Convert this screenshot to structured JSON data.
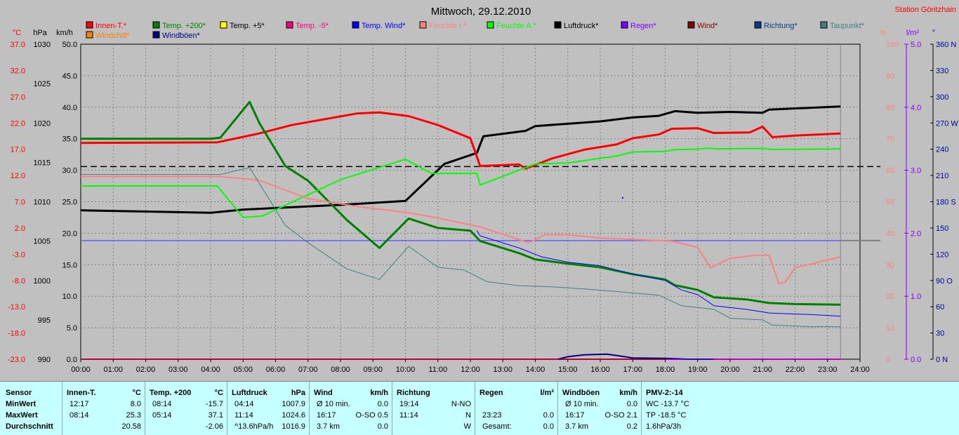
{
  "chart_data": {
    "type": "line",
    "title": "Mittwoch, 29.12.2010",
    "station": "Station Göritzhain",
    "axes": {
      "celsius": {
        "unit": "°C",
        "ticks": [
          "37.0",
          "32.0",
          "27.0",
          "22.0",
          "17.0",
          "12.0",
          "7.0",
          "2.0",
          "-3.0",
          "-8.0",
          "-13.0",
          "-18.0",
          "-23.0"
        ],
        "range": [
          -23,
          37
        ],
        "color": "#ff0000"
      },
      "hpa": {
        "unit": "hPa",
        "ticks": [
          "1030",
          "1025",
          "1020",
          "1015",
          "1010",
          "1005",
          "1000",
          "995",
          "990"
        ],
        "range": [
          990,
          1030
        ]
      },
      "kmh": {
        "unit": "km/h",
        "ticks": [
          "50.0",
          "45.0",
          "40.0",
          "35.0",
          "30.0",
          "25.0",
          "20.0",
          "15.0",
          "10.0",
          "5.0",
          "0.0"
        ],
        "range": [
          0,
          50
        ]
      },
      "percent": {
        "unit": "%",
        "ticks": [
          "100",
          "90",
          "80",
          "70",
          "60",
          "50",
          "40",
          "30",
          "20",
          "10",
          "0"
        ],
        "range": [
          0,
          100
        ],
        "color": "#ff8080"
      },
      "lm2": {
        "unit": "l/m²",
        "ticks": [
          "5.0",
          "4.0",
          "3.0",
          "2.0",
          "1.0",
          "0.0"
        ],
        "range": [
          0,
          5
        ],
        "color": "#8000ff"
      },
      "degree": {
        "unit": "°",
        "ticks": [
          "360 N",
          "330",
          "300",
          "270 W",
          "240",
          "210",
          "180 S",
          "150",
          "120",
          "90 O",
          "60",
          "30",
          "0 N"
        ],
        "range": [
          0,
          360
        ],
        "color": "#0000a0"
      },
      "time": {
        "ticks": [
          "00:00",
          "01:00",
          "02:00",
          "03:00",
          "04:00",
          "05:00",
          "06:00",
          "07:00",
          "08:00",
          "09:00",
          "10:00",
          "11:00",
          "12:00",
          "13:00",
          "14:00",
          "15:00",
          "16:00",
          "17:00",
          "18:00",
          "19:00",
          "20:00",
          "21:00",
          "22:00",
          "23:00",
          "24:00"
        ],
        "range": [
          0,
          24
        ]
      }
    },
    "legend": [
      {
        "name": "Innen-T.*",
        "color": "#ff0000"
      },
      {
        "name": "Temp. +200*",
        "color": "#008000"
      },
      {
        "name": "Temp. +5*",
        "color": "#ffff00"
      },
      {
        "name": "Temp. -5*",
        "color": "#ff0080"
      },
      {
        "name": "Temp. Wind*",
        "color": "#0000ff"
      },
      {
        "name": "Feuchte I.*",
        "color": "#ff8080"
      },
      {
        "name": "Feuchte A.*",
        "color": "#00ff00"
      },
      {
        "name": "Luftdruck*",
        "color": "#000000"
      },
      {
        "name": "Regen*",
        "color": "#8000ff"
      },
      {
        "name": "Wind*",
        "color": "#800000"
      },
      {
        "name": "Richtung*",
        "color": "#004080"
      },
      {
        "name": "Taupunkt*",
        "color": "#408080"
      },
      {
        "name": "Windchill*",
        "color": "#ff8000"
      },
      {
        "name": "Windböen*",
        "color": "#000080"
      }
    ],
    "series": [
      {
        "name": "Luftdruck*",
        "axis": "hpa",
        "color": "#000000",
        "width": 3,
        "points": [
          [
            0,
            1008.9
          ],
          [
            4,
            1008.6
          ],
          [
            5,
            1009.0
          ],
          [
            8,
            1009.6
          ],
          [
            10,
            1010.1
          ],
          [
            11.2,
            1014.8
          ],
          [
            12.2,
            1016.2
          ],
          [
            12.4,
            1018.3
          ],
          [
            13.7,
            1019.0
          ],
          [
            14,
            1019.6
          ],
          [
            16,
            1020.2
          ],
          [
            17,
            1020.7
          ],
          [
            17.8,
            1020.9
          ],
          [
            18.3,
            1021.5
          ],
          [
            19,
            1021.3
          ],
          [
            20,
            1021.4
          ],
          [
            21,
            1021.3
          ],
          [
            21.2,
            1021.7
          ],
          [
            23.4,
            1022.1
          ]
        ]
      },
      {
        "name": "Innen-T.*",
        "axis": "celsius",
        "color": "#ff0000",
        "width": 3,
        "points": [
          [
            0,
            18.2
          ],
          [
            4.2,
            18.3
          ],
          [
            5.5,
            20.0
          ],
          [
            6.5,
            21.6
          ],
          [
            7.5,
            22.7
          ],
          [
            8.5,
            23.8
          ],
          [
            9.2,
            24.0
          ],
          [
            10.1,
            23.3
          ],
          [
            11,
            21.6
          ],
          [
            12,
            19.1
          ],
          [
            12.3,
            13.8
          ],
          [
            13.5,
            14.1
          ],
          [
            13.7,
            13.3
          ],
          [
            14.5,
            15.2
          ],
          [
            15.5,
            16.9
          ],
          [
            16.5,
            17.9
          ],
          [
            17,
            19.1
          ],
          [
            17.8,
            19.8
          ],
          [
            18.2,
            20.9
          ],
          [
            19,
            21.0
          ],
          [
            19.5,
            20.1
          ],
          [
            20.6,
            20.2
          ],
          [
            21,
            21.3
          ],
          [
            21.3,
            19.3
          ],
          [
            22,
            19.6
          ],
          [
            23.4,
            20.0
          ]
        ]
      },
      {
        "name": "Temp. +200*",
        "axis": "celsius",
        "color": "#008000",
        "width": 3,
        "points": [
          [
            0,
            19.0
          ],
          [
            4,
            19.0
          ],
          [
            4.3,
            19.2
          ],
          [
            5.2,
            26.0
          ],
          [
            5.5,
            22.0
          ],
          [
            6.3,
            13.8
          ],
          [
            7,
            11.0
          ],
          [
            8.2,
            3.5
          ],
          [
            9.2,
            -1.8
          ],
          [
            10.1,
            3.8
          ],
          [
            11,
            2.0
          ],
          [
            12,
            1.5
          ],
          [
            12.3,
            -0.5
          ],
          [
            13.5,
            -2.8
          ],
          [
            14,
            -4.0
          ],
          [
            15,
            -4.8
          ],
          [
            16,
            -5.5
          ],
          [
            17,
            -6.8
          ],
          [
            18,
            -7.8
          ],
          [
            18.3,
            -8.9
          ],
          [
            19,
            -9.8
          ],
          [
            19.5,
            -11.2
          ],
          [
            20.5,
            -11.6
          ],
          [
            21.2,
            -12.3
          ],
          [
            22,
            -12.5
          ],
          [
            23.4,
            -12.6
          ]
        ]
      },
      {
        "name": "Feuchte A.*",
        "axis": "percent",
        "color": "#00ff00",
        "width": 2,
        "points": [
          [
            0,
            55
          ],
          [
            4.2,
            55
          ],
          [
            5,
            45
          ],
          [
            5.6,
            45.5
          ],
          [
            8,
            57
          ],
          [
            10,
            63.5
          ],
          [
            10.8,
            59
          ],
          [
            12.2,
            59
          ],
          [
            12.3,
            55.3
          ],
          [
            14,
            62
          ],
          [
            15,
            62.3
          ],
          [
            16.5,
            64.5
          ],
          [
            17,
            65.8
          ],
          [
            18,
            66
          ],
          [
            18.3,
            66.5
          ],
          [
            19,
            66.7
          ],
          [
            19.3,
            67
          ],
          [
            19.6,
            66.8
          ],
          [
            21,
            66.9
          ],
          [
            21.3,
            66.6
          ],
          [
            23.4,
            66.8
          ]
        ]
      },
      {
        "name": "Feuchte I.*",
        "axis": "percent",
        "color": "#ff8080",
        "width": 2,
        "points": [
          [
            0,
            58
          ],
          [
            4.3,
            58
          ],
          [
            5.5,
            56.8
          ],
          [
            7,
            51
          ],
          [
            8.5,
            48.5
          ],
          [
            10.1,
            46.5
          ],
          [
            11,
            44.8
          ],
          [
            12.3,
            42
          ],
          [
            13.8,
            37
          ],
          [
            14.3,
            39.5
          ],
          [
            15,
            39.5
          ],
          [
            16,
            38.5
          ],
          [
            18.2,
            37.5
          ],
          [
            19,
            35.5
          ],
          [
            19.4,
            29
          ],
          [
            19.6,
            30
          ],
          [
            20,
            32
          ],
          [
            20.8,
            33
          ],
          [
            21.2,
            33
          ],
          [
            21.5,
            24
          ],
          [
            21.7,
            24.5
          ],
          [
            22,
            29
          ],
          [
            23.4,
            32.5
          ]
        ]
      },
      {
        "name": "Taupunkt*",
        "axis": "celsius",
        "color": "#408080",
        "width": 1,
        "points": [
          [
            0,
            12.2
          ],
          [
            4.3,
            12.2
          ],
          [
            5.2,
            13.5
          ],
          [
            6.3,
            2.5
          ],
          [
            7,
            -0.8
          ],
          [
            8.2,
            -5.8
          ],
          [
            9.2,
            -7.8
          ],
          [
            10.1,
            -1.5
          ],
          [
            11,
            -5.5
          ],
          [
            11.8,
            -6.0
          ],
          [
            12.5,
            -8.2
          ],
          [
            13.5,
            -9.0
          ],
          [
            14.5,
            -9.2
          ],
          [
            15.5,
            -9.6
          ],
          [
            16.5,
            -10.1
          ],
          [
            17.8,
            -10.8
          ],
          [
            18.5,
            -12.8
          ],
          [
            19.5,
            -13.5
          ],
          [
            20,
            -15.2
          ],
          [
            21,
            -15.5
          ],
          [
            21.3,
            -16.5
          ],
          [
            22.5,
            -16.8
          ],
          [
            23.4,
            -16.8
          ]
        ]
      },
      {
        "name": "Temp. Wind*",
        "axis": "celsius",
        "color": "#0000ff",
        "width": 1,
        "points": [
          [
            12.2,
            1.5
          ],
          [
            12.3,
            0.5
          ],
          [
            13.5,
            -1.8
          ],
          [
            14.2,
            -3.5
          ],
          [
            15,
            -4.5
          ],
          [
            16,
            -5.2
          ],
          [
            17,
            -6.8
          ],
          [
            18,
            -8.0
          ],
          [
            18.5,
            -9.8
          ],
          [
            19,
            -10.7
          ],
          [
            19.5,
            -12.8
          ],
          [
            20.5,
            -13.5
          ],
          [
            21.2,
            -14.2
          ],
          [
            22.5,
            -14.5
          ],
          [
            23.4,
            -14.8
          ]
        ]
      },
      {
        "name": "Temp. -5*",
        "axis": "celsius",
        "color": "#ff0080",
        "width": 2,
        "points": [
          [
            0,
            -23
          ],
          [
            23.4,
            -23
          ]
        ]
      },
      {
        "name": "Windböen*",
        "axis": "kmh",
        "color": "#000080",
        "width": 2,
        "points": [
          [
            14.7,
            0
          ],
          [
            15,
            0.4
          ],
          [
            15.5,
            0.7
          ],
          [
            16.2,
            0.8
          ],
          [
            16.5,
            0.6
          ],
          [
            17,
            0.2
          ],
          [
            18,
            0.15
          ],
          [
            18.7,
            0
          ],
          [
            19.5,
            0
          ]
        ]
      },
      {
        "name": "Wind*",
        "axis": "kmh",
        "color": "#800000",
        "width": 1,
        "points": [
          [
            0,
            0
          ],
          [
            23.4,
            0
          ]
        ]
      },
      {
        "name": "Regen*",
        "axis": "lm2",
        "color": "#8000ff",
        "width": 1,
        "points": [
          [
            18,
            0
          ],
          [
            23.4,
            0
          ]
        ]
      }
    ],
    "reference_lines": [
      {
        "axis": "celsius",
        "value": 13.7,
        "style": "dashed",
        "color": "#000000"
      },
      {
        "axis": "celsius",
        "value": -0.4,
        "style": "solid",
        "color": "#6060ff"
      },
      {
        "axis": "celsius",
        "value": -0.4,
        "style": "solid",
        "color": "#808080",
        "from": 23.4
      }
    ],
    "grid": true
  },
  "table": {
    "row_labels": {
      "sensor": "Sensor",
      "min": "MinWert",
      "max": "MaxWert",
      "avg": "Durchschnitt"
    },
    "columns": [
      {
        "id": "innen",
        "header": "Innen-T.",
        "unit": "°C",
        "min_time": "12:17",
        "min_value": "8.0",
        "max_time": "08:14",
        "max_value": "25.3",
        "avg_time": "",
        "avg_value": "20.58"
      },
      {
        "id": "temp200",
        "header": "Temp. +200",
        "unit": "°C",
        "min_time": "08:14",
        "min_value": "-15.7",
        "max_time": "05:14",
        "max_value": "37.1",
        "avg_time": "",
        "avg_value": "-2.06"
      },
      {
        "id": "luftdruck",
        "header": "Luftdruck",
        "unit": "hPa",
        "min_time": "04:14",
        "min_value": "1007.9",
        "max_time": "11:14",
        "max_value": "1024.6",
        "avg_time": "^13.6hPa/h",
        "avg_value": "1016.9"
      },
      {
        "id": "wind",
        "header": "Wind",
        "unit": "km/h",
        "min_time": "Ø 10 min.",
        "min_value": "0.0",
        "max_time": "16:17",
        "max_value": "O-SO 0.5",
        "avg_time": "3.7 km",
        "avg_value": "0.0"
      },
      {
        "id": "richtung",
        "header": "Richtung",
        "unit": "",
        "min_time": "19:14",
        "min_value": "N-NO",
        "max_time": "11:14",
        "max_value": "N",
        "avg_time": "",
        "avg_value": "W"
      },
      {
        "id": "regen",
        "header": "Regen",
        "unit": "l/m²",
        "min_time": "",
        "min_value": "",
        "max_time": "23:23",
        "max_value": "0.0",
        "avg_time": "Gesamt:",
        "avg_value": "0.0"
      },
      {
        "id": "windboeen",
        "header": "Windböen",
        "unit": "km/h",
        "min_time": "Ø 10 min.",
        "min_value": "0.0",
        "max_time": "16:17",
        "max_value": "O-SO 2.1",
        "avg_time": "3.7 km",
        "avg_value": "0.2"
      },
      {
        "id": "pmv",
        "header": "PMV-2:-14",
        "unit": "",
        "min_time": "WC -13.7 °C",
        "min_value": "",
        "max_time": "TP -18.5 °C",
        "max_value": "",
        "avg_time": "1.6hPa/3h",
        "avg_value": ""
      }
    ]
  }
}
